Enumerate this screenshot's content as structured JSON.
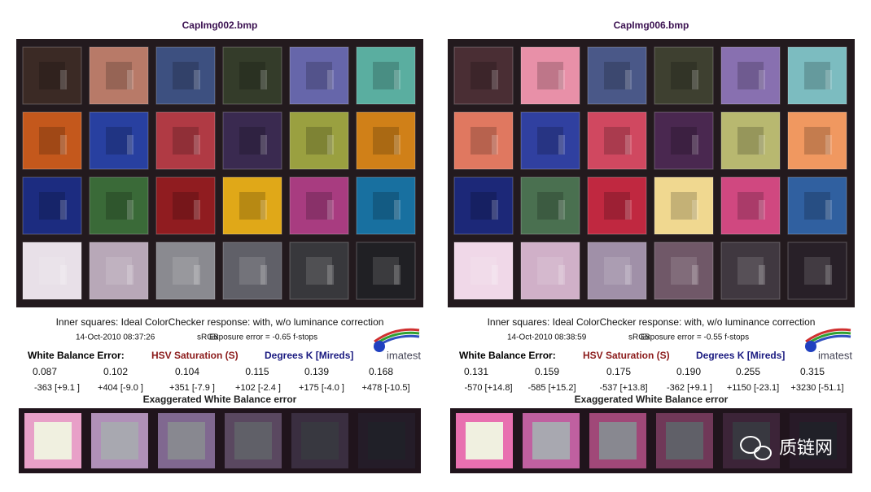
{
  "panels": [
    {
      "title": "CapImg002.bmp",
      "caption": "Inner squares: Ideal ColorChecker response: with, w/o luminance correction",
      "info": {
        "date": "14-Oct-2010 08:37:26",
        "color_space": "sRGB",
        "exposure": "Exposure error = -0.65 f-stops"
      },
      "headers": [
        "White Balance Error:",
        "HSV Saturation (S)",
        "Degrees K [Mireds]"
      ],
      "saturation": [
        "0.087",
        "0.102",
        "0.104",
        "0.115",
        "0.139",
        "0.168"
      ],
      "degrees": [
        "-363 [+9.1 ]",
        "+404 [-9.0 ]",
        "+351 [-7.9 ]",
        "+102 [-2.4 ]",
        "+175 [-4.0 ]",
        "+478 [-10.5]"
      ],
      "strip_label": "Exaggerated White Balance error"
    },
    {
      "title": "CapImg006.bmp",
      "caption": "Inner squares: Ideal ColorChecker response: with, w/o luminance correction",
      "info": {
        "date": "14-Oct-2010 08:38:59",
        "color_space": "sRGB",
        "exposure": "Exposure error = -0.55 f-stops"
      },
      "headers": [
        "White Balance Error:",
        "HSV Saturation (S)",
        "Degrees K [Mireds]"
      ],
      "saturation": [
        "0.131",
        "0.159",
        "0.175",
        "0.190",
        "0.255",
        "0.315"
      ],
      "degrees": [
        "-570 [+14.8]",
        "-585 [+15.2]",
        "-537 [+13.8]",
        "-362 [+9.1 ]",
        "+1150 [-23.1]",
        "+3230 [-51.1]"
      ],
      "strip_label": "Exaggerated White Balance error"
    }
  ],
  "logo": "imatest",
  "watermark": "质链网"
}
